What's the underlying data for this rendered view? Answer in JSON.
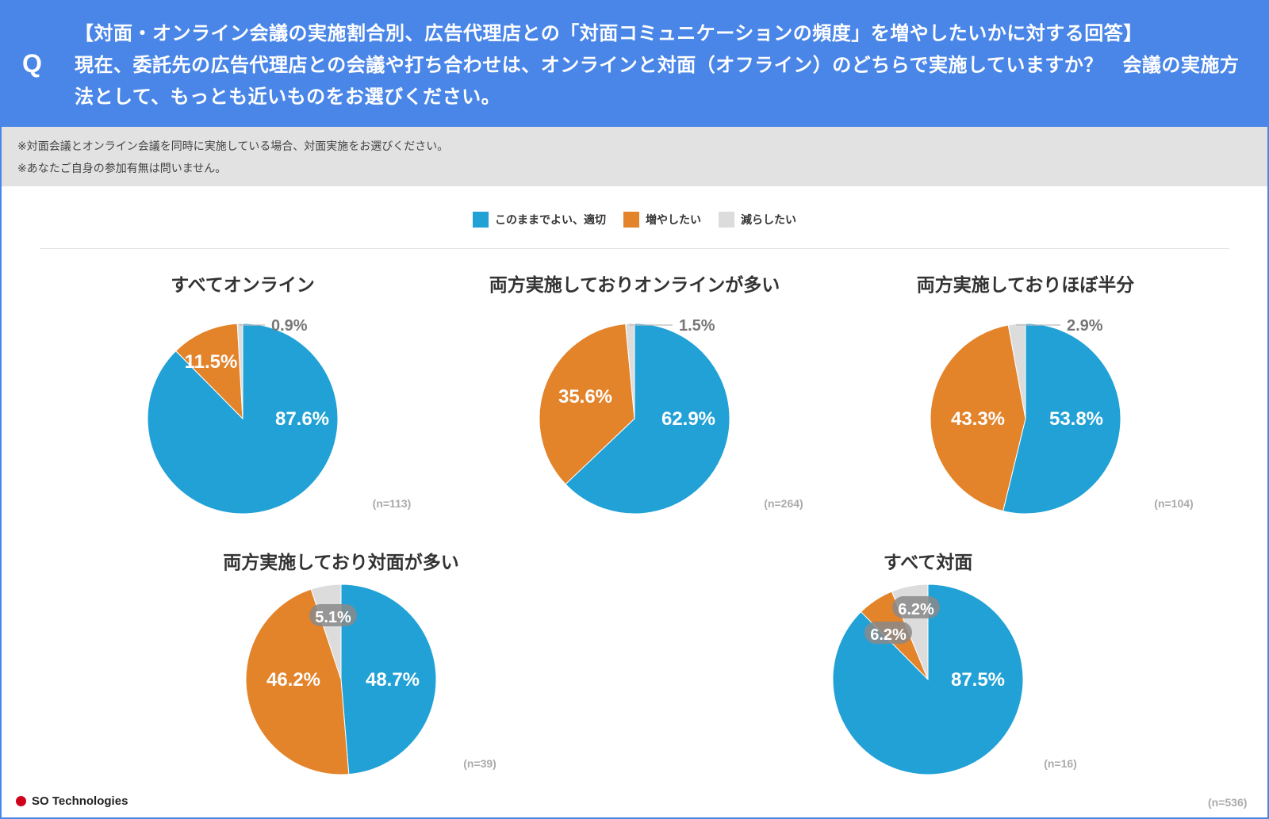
{
  "header": {
    "q_mark": "Q",
    "title": "【対面・オンライン会議の実施割合別、広告代理店との「対面コミュニケーションの頻度」を増やしたいかに対する回答】",
    "question": "現在、委託先の広告代理店との会議や打ち合わせは、オンラインと対面（オフライン）のどちらで実施していますか？　会議の実施方法として、もっとも近いものをお選びください。"
  },
  "notes": [
    "※対面会議とオンライン会議を同時に実施している場合、対面実施をお選びください。",
    "※あなたご自身の参加有無は問いません。"
  ],
  "legend": [
    {
      "label": "このままでよい、適切",
      "color": "#21a1d6"
    },
    {
      "label": "増やしたい",
      "color": "#e3832a"
    },
    {
      "label": "減らしたい",
      "color": "#dcdcdc"
    }
  ],
  "chart_data": [
    {
      "type": "pie",
      "title": "すべてオンライン",
      "n_label": "(n=113)",
      "categories": [
        "このままでよい、適切",
        "増やしたい",
        "減らしたい"
      ],
      "values": [
        87.6,
        11.5,
        0.9
      ],
      "labels": [
        "87.6%",
        "11.5%",
        "0.9%"
      ]
    },
    {
      "type": "pie",
      "title": "両方実施しておりオンラインが多い",
      "n_label": "(n=264)",
      "categories": [
        "このままでよい、適切",
        "増やしたい",
        "減らしたい"
      ],
      "values": [
        62.9,
        35.6,
        1.5
      ],
      "labels": [
        "62.9%",
        "35.6%",
        "1.5%"
      ]
    },
    {
      "type": "pie",
      "title": "両方実施しておりほぼ半分",
      "n_label": "(n=104)",
      "categories": [
        "このままでよい、適切",
        "増やしたい",
        "減らしたい"
      ],
      "values": [
        53.8,
        43.3,
        2.9
      ],
      "labels": [
        "53.8%",
        "43.3%",
        "2.9%"
      ]
    },
    {
      "type": "pie",
      "title": "両方実施しており対面が多い",
      "n_label": "(n=39)",
      "categories": [
        "このままでよい、適切",
        "増やしたい",
        "減らしたい"
      ],
      "values": [
        48.7,
        46.2,
        5.1
      ],
      "labels": [
        "48.7%",
        "46.2%",
        "5.1%"
      ]
    },
    {
      "type": "pie",
      "title": "すべて対面",
      "n_label": "(n=16)",
      "categories": [
        "このままでよい、適切",
        "増やしたい",
        "減らしたい"
      ],
      "values": [
        87.5,
        6.2,
        6.2
      ],
      "labels": [
        "87.5%",
        "6.2%",
        "6.2%"
      ]
    }
  ],
  "footer": {
    "logo_text": "SO Technologies",
    "total_n": "(n=536)"
  }
}
